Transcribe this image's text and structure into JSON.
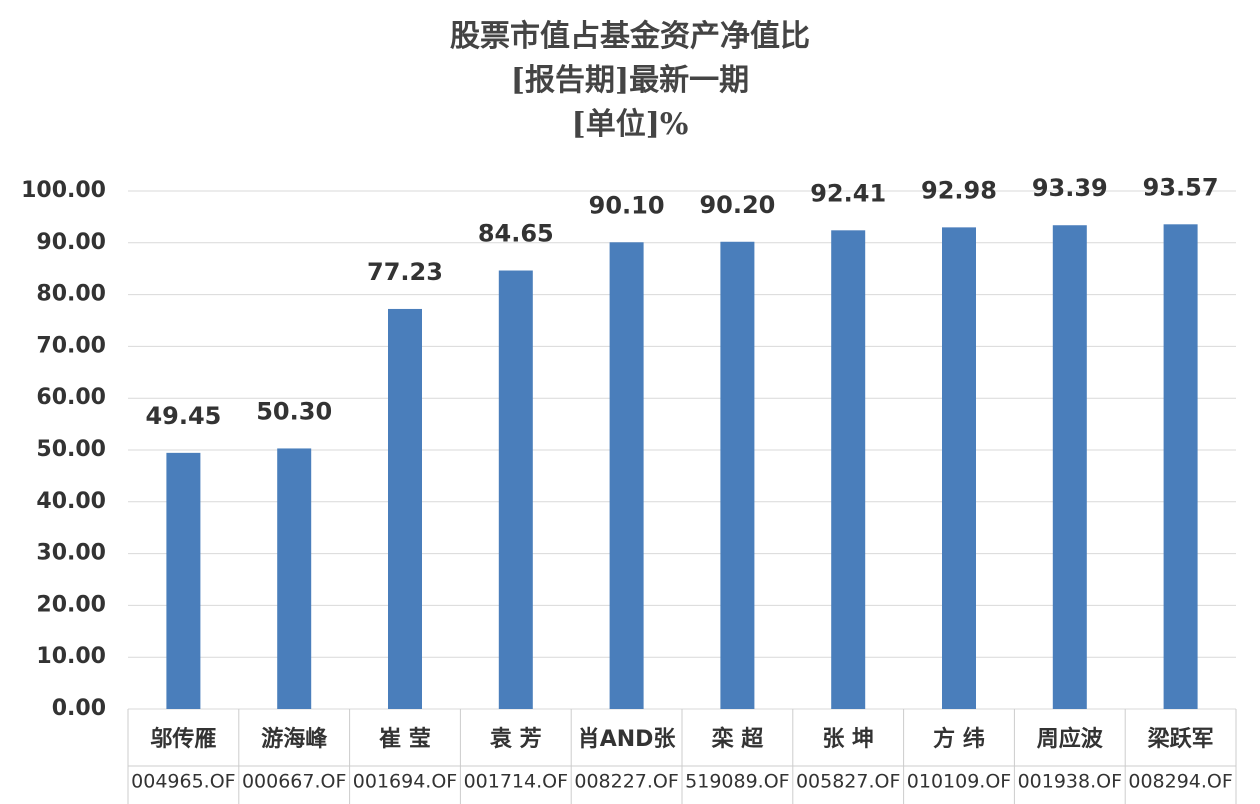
{
  "chart_data": {
    "type": "bar",
    "title": "股票市值占基金资产净值比",
    "subtitle": [
      "[报告期]最新一期",
      "[单位]%"
    ],
    "categories": [
      "邬传雁",
      "游海峰",
      "崔 莹",
      "袁 芳",
      "肖AND张",
      "栾 超",
      "张 坤",
      "方 纬",
      "周应波",
      "梁跃军"
    ],
    "category_codes": [
      "004965.OF",
      "000667.OF",
      "001694.OF",
      "001714.OF",
      "008227.OF",
      "519089.OF",
      "005827.OF",
      "010109.OF",
      "001938.OF",
      "008294.OF"
    ],
    "values": [
      49.45,
      50.3,
      77.23,
      84.65,
      90.1,
      90.2,
      92.41,
      92.98,
      93.39,
      93.57
    ],
    "value_labels": [
      "49.45",
      "50.30",
      "77.23",
      "84.65",
      "90.10",
      "90.20",
      "92.41",
      "92.98",
      "93.39",
      "93.57"
    ],
    "color": "#4a7ebb",
    "ylim": [
      0,
      100
    ],
    "yticks": [
      {
        "value": 0,
        "label": "0.00"
      },
      {
        "value": 10,
        "label": "10.00"
      },
      {
        "value": 20,
        "label": "20.00"
      },
      {
        "value": 30,
        "label": "30.00"
      },
      {
        "value": 40,
        "label": "40.00"
      },
      {
        "value": 50,
        "label": "50.00"
      },
      {
        "value": 60,
        "label": "60.00"
      },
      {
        "value": 70,
        "label": "70.00"
      },
      {
        "value": 80,
        "label": "80.00"
      },
      {
        "value": 90,
        "label": "90.00"
      },
      {
        "value": 100,
        "label": "100.00"
      }
    ],
    "grid": true
  }
}
